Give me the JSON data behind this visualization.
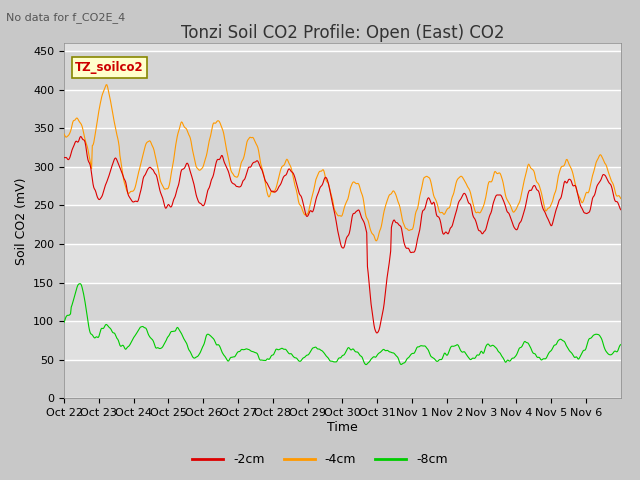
{
  "title": "Tonzi Soil CO2 Profile: Open (East) CO2",
  "subtitle": "No data for f_CO2E_4",
  "ylabel": "Soil CO2 (mV)",
  "xlabel": "Time",
  "legend_label": "TZ_soilco2",
  "ylim": [
    0,
    460
  ],
  "yticks": [
    0,
    50,
    100,
    150,
    200,
    250,
    300,
    350,
    400,
    450
  ],
  "xtick_labels": [
    "Oct 22",
    "Oct 23",
    "Oct 24",
    "Oct 25",
    "Oct 26",
    "Oct 27",
    "Oct 28",
    "Oct 29",
    "Oct 30",
    "Oct 31",
    "Nov 1",
    "Nov 2",
    "Nov 3",
    "Nov 4",
    "Nov 5",
    "Nov 6"
  ],
  "color_2cm": "#dd0000",
  "color_4cm": "#ff9900",
  "color_8cm": "#00cc00",
  "legend_entries": [
    "-2cm",
    "-4cm",
    "-8cm"
  ],
  "title_fontsize": 12,
  "axis_fontsize": 9,
  "tick_fontsize": 8,
  "fig_width": 6.4,
  "fig_height": 4.8,
  "fig_dpi": 100
}
